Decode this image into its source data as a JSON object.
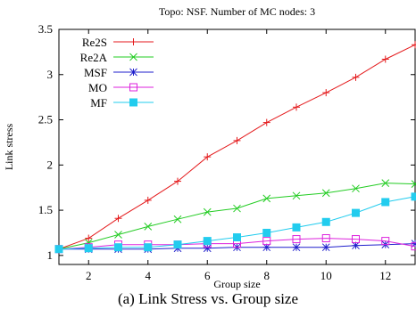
{
  "caption": "(a) Link Stress vs. Group size",
  "chart_data": {
    "type": "line",
    "title": "Topo: NSF. Number of MC nodes: 3",
    "xlabel": "Group size",
    "ylabel": "Link stress",
    "xlim": [
      1,
      13
    ],
    "ylim": [
      0.9,
      3.5
    ],
    "xticks": [
      2,
      4,
      6,
      8,
      10,
      12
    ],
    "yticks": [
      1,
      1.5,
      2,
      2.5,
      3,
      3.5
    ],
    "ytick_labels": [
      "1",
      "1.5",
      "2",
      "2.5",
      "3",
      "3.5"
    ],
    "grid": false,
    "legend_position": "top-left",
    "x": [
      1,
      2,
      3,
      4,
      5,
      6,
      7,
      8,
      9,
      10,
      11,
      12,
      13
    ],
    "series": [
      {
        "name": "Re2S",
        "color": "#e41a1c",
        "marker": "plus",
        "values": [
          1.07,
          1.19,
          1.41,
          1.61,
          1.82,
          2.09,
          2.27,
          2.47,
          2.64,
          2.8,
          2.97,
          3.17,
          3.33
        ]
      },
      {
        "name": "Re2A",
        "color": "#22cc22",
        "marker": "cross",
        "values": [
          1.07,
          1.14,
          1.23,
          1.32,
          1.4,
          1.48,
          1.52,
          1.63,
          1.66,
          1.69,
          1.74,
          1.8,
          1.79
        ]
      },
      {
        "name": "MSF",
        "color": "#1f1fcc",
        "marker": "star",
        "values": [
          1.07,
          1.07,
          1.07,
          1.07,
          1.08,
          1.08,
          1.09,
          1.09,
          1.09,
          1.09,
          1.11,
          1.12,
          1.13
        ]
      },
      {
        "name": "MO",
        "color": "#dd22dd",
        "marker": "open-square",
        "values": [
          1.07,
          1.09,
          1.12,
          1.12,
          1.12,
          1.13,
          1.13,
          1.16,
          1.18,
          1.19,
          1.18,
          1.16,
          1.1
        ]
      },
      {
        "name": "MF",
        "color": "#22ccee",
        "marker": "filled-square",
        "values": [
          1.07,
          1.08,
          1.09,
          1.09,
          1.12,
          1.16,
          1.2,
          1.25,
          1.31,
          1.37,
          1.47,
          1.59,
          1.65
        ]
      }
    ]
  }
}
